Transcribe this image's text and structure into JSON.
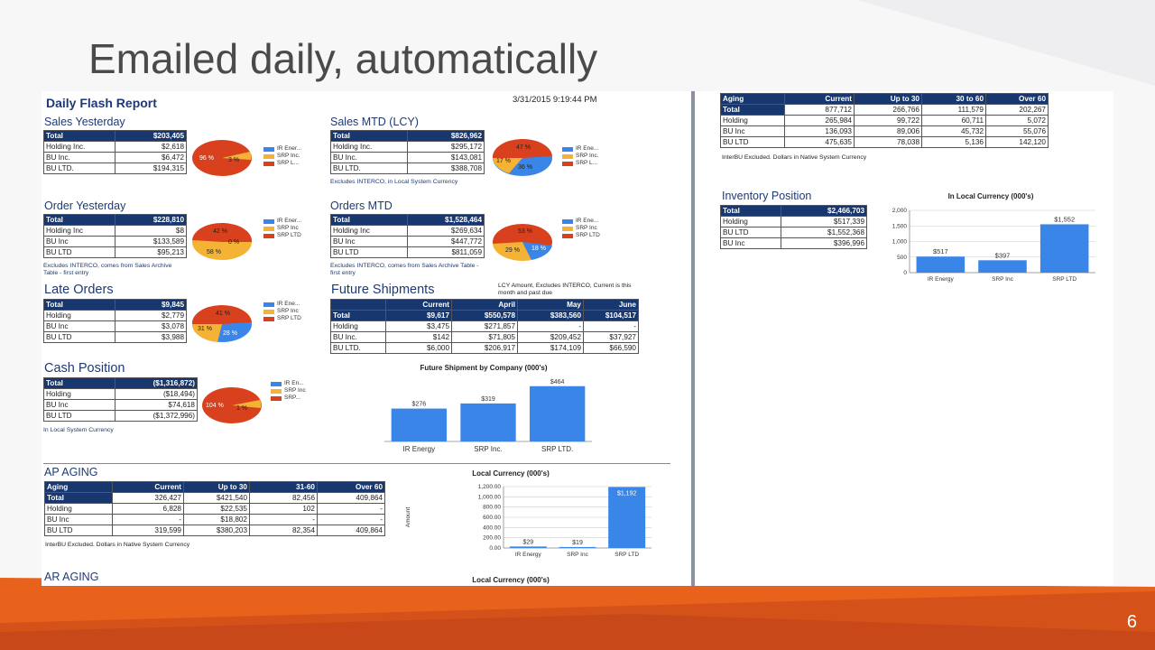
{
  "slide": {
    "title": "Emailed daily, automatically",
    "page_number": "6"
  },
  "colors": {
    "blue": "#3a86e8",
    "yellow": "#f5b335",
    "red": "#d9411e",
    "header": "#17376e"
  },
  "report": {
    "title": "Daily Flash Report",
    "timestamp": "3/31/2015 9:19:44 PM",
    "sales_yesterday": {
      "title": "Sales Yesterday",
      "rows": [
        [
          "Total",
          "$203,405"
        ],
        [
          "Holding Inc.",
          "$2,618"
        ],
        [
          "BU Inc.",
          "$6,472"
        ],
        [
          "BU LTD.",
          "$194,315"
        ]
      ],
      "pie_labels": [
        "96 %",
        "1 %",
        "3 %"
      ],
      "legend": [
        "IR Ener...",
        "SRP Inc.",
        "SRP L..."
      ]
    },
    "sales_mtd": {
      "title": "Sales MTD (LCY)",
      "rows": [
        [
          "Total",
          "$826,962"
        ],
        [
          "Holding Inc.",
          "$295,172"
        ],
        [
          "BU Inc.",
          "$143,081"
        ],
        [
          "BU LTD.",
          "$388,708"
        ]
      ],
      "pie_labels": [
        "47 %",
        "17 %",
        "36 %"
      ],
      "legend": [
        "IR Ene...",
        "SRP Inc.",
        "SRP L..."
      ],
      "note": "Excludes INTERCO, in Local System Currency"
    },
    "order_yesterday": {
      "title": "Order Yesterday",
      "rows": [
        [
          "Total",
          "$228,810"
        ],
        [
          "Holding Inc",
          "$8"
        ],
        [
          "BU Inc",
          "$133,589"
        ],
        [
          "BU LTD",
          "$95,213"
        ]
      ],
      "pie_labels": [
        "42 %",
        "0 %",
        "58 %"
      ],
      "legend": [
        "IR Ener...",
        "SRP Inc",
        "SRP LTD"
      ],
      "note": "Excludes INTERCO, comes from Sales Archive Table - first entry"
    },
    "orders_mtd": {
      "title": "Orders MTD",
      "rows": [
        [
          "Total",
          "$1,528,464"
        ],
        [
          "Holding Inc",
          "$269,634"
        ],
        [
          "BU Inc",
          "$447,772"
        ],
        [
          "BU LTD",
          "$811,059"
        ]
      ],
      "pie_labels": [
        "53 %",
        "29 %",
        "18 %"
      ],
      "legend": [
        "IR Ene...",
        "SRP Inc",
        "SRP LTD"
      ],
      "note": "Excludes INTERCO, comes from Sales Archive Table - first entry"
    },
    "late_orders": {
      "title": "Late Orders",
      "rows": [
        [
          "Total",
          "$9,845"
        ],
        [
          "Holding",
          "$2,779"
        ],
        [
          "BU Inc",
          "$3,078"
        ],
        [
          "BU LTD",
          "$3,988"
        ]
      ],
      "pie_labels": [
        "41 %",
        "31 %",
        "28 %"
      ],
      "legend": [
        "IR Ene...",
        "SRP Inc",
        "SRP LTD"
      ]
    },
    "future_shipments": {
      "title": "Future Shipments",
      "note": "LCY Amount, Excludes INTERCO, Current is this month and past due",
      "headers": [
        "",
        "Current",
        "April",
        "May",
        "June"
      ],
      "rows": [
        [
          "Total",
          "$9,617",
          "$550,578",
          "$383,560",
          "$104,517"
        ],
        [
          "Holding",
          "$3,475",
          "$271,857",
          "-",
          "-"
        ],
        [
          "BU Inc.",
          "$142",
          "$71,805",
          "$209,452",
          "$37,927"
        ],
        [
          "BU LTD.",
          "$6,000",
          "$206,917",
          "$174,109",
          "$66,590"
        ]
      ]
    },
    "cash_position": {
      "title": "Cash Position",
      "rows": [
        [
          "Total",
          "($1,316,872)"
        ],
        [
          "Holding",
          "($18,494)"
        ],
        [
          "BU Inc",
          "$74,618"
        ],
        [
          "BU LTD",
          "($1,372,996)"
        ]
      ],
      "pie_labels": [
        "104 %",
        "1 %"
      ],
      "legend": [
        "IR En...",
        "SRP Inc",
        "SRP..."
      ],
      "note": "In Local System Currency"
    },
    "ap_aging": {
      "title": "AP AGING",
      "headers": [
        "Aging",
        "Current",
        "Up to 30",
        "31-60",
        "Over 60"
      ],
      "rows": [
        [
          "Total",
          "326,427",
          "$421,540",
          "82,456",
          "409,864"
        ],
        [
          "Holding",
          "6,828",
          "$22,535",
          "102",
          "-"
        ],
        [
          "BU Inc",
          "-",
          "$18,802",
          "-",
          "-"
        ],
        [
          "BU LTD",
          "319,599",
          "$380,203",
          "82,354",
          "409,864"
        ]
      ],
      "note": "InterBU Excluded.  Dollars in Native System Currency"
    },
    "ar_aging": {
      "title": "AR AGING"
    },
    "ar_chart_title": "Local Currency (000's)"
  },
  "report2": {
    "aging": {
      "headers": [
        "Aging",
        "Current",
        "Up to 30",
        "30 to 60",
        "Over 60"
      ],
      "rows": [
        [
          "Total",
          "877,712",
          "266,766",
          "111,579",
          "202,267"
        ],
        [
          "Holding",
          "265,984",
          "99,722",
          "60,711",
          "5,072"
        ],
        [
          "BU Inc",
          "136,093",
          "89,006",
          "45,732",
          "55,076"
        ],
        [
          "BU LTD",
          "475,635",
          "78,038",
          "5,136",
          "142,120"
        ]
      ],
      "note": "InterBU Excluded.  Dollars in Native System Currency"
    },
    "inventory": {
      "title": "Inventory Position",
      "rows": [
        [
          "Total",
          "$2,466,703"
        ],
        [
          "Holding",
          "$517,339"
        ],
        [
          "BU LTD",
          "$1,552,368"
        ],
        [
          "BU Inc",
          "$396,996"
        ]
      ]
    }
  },
  "chart_data": [
    {
      "type": "bar",
      "title": "Future Shipment by Company (000's)",
      "categories": [
        "IR Energy",
        "SRP Inc.",
        "SRP LTD."
      ],
      "values": [
        276,
        319,
        464
      ],
      "data_labels": [
        "$276",
        "$319",
        "$464"
      ],
      "ylim": [
        0,
        500
      ]
    },
    {
      "type": "bar",
      "title": "Local Currency (000's)",
      "categories": [
        "IR Energy",
        "SRP Inc",
        "SRP LTD"
      ],
      "values": [
        29,
        19,
        1192
      ],
      "data_labels": [
        "$29",
        "$19",
        "$1,192"
      ],
      "yticks": [
        "0.00",
        "200.00",
        "400.00",
        "600.00",
        "800.00",
        "1,000.00",
        "1,200.00"
      ],
      "ylabel": "Amount",
      "ylim": [
        0,
        1200
      ]
    },
    {
      "type": "bar",
      "title": "In Local Currency (000's)",
      "categories": [
        "IR Energy",
        "SRP Inc",
        "SRP LTD"
      ],
      "values": [
        517,
        397,
        1552
      ],
      "data_labels": [
        "$517",
        "$397",
        "$1,552"
      ],
      "yticks": [
        "0",
        "500",
        "1,000",
        "1,500",
        "2,000"
      ],
      "ylim": [
        0,
        2000
      ]
    },
    {
      "type": "pie",
      "title": "",
      "slices": [
        {
          "name": "Sales Yesterday",
          "values": [
            96,
            1,
            3
          ]
        },
        {
          "name": "Sales MTD (LCY)",
          "values": [
            47,
            17,
            36
          ]
        },
        {
          "name": "Order Yesterday",
          "values": [
            42,
            0,
            58
          ]
        },
        {
          "name": "Orders MTD",
          "values": [
            53,
            29,
            18
          ]
        },
        {
          "name": "Late Orders",
          "values": [
            41,
            31,
            28
          ]
        },
        {
          "name": "Cash Position",
          "values": [
            104,
            1
          ]
        }
      ]
    }
  ]
}
